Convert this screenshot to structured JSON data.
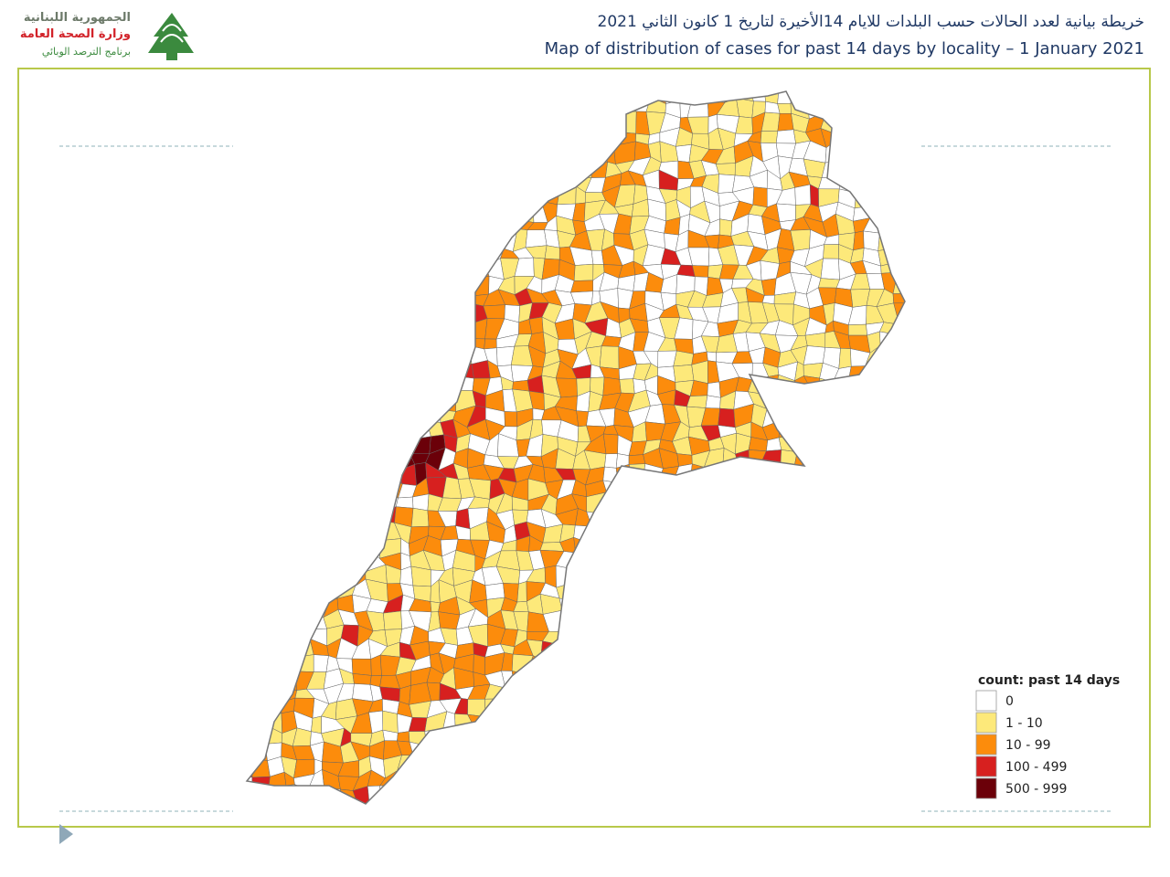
{
  "header": {
    "logo_lines": [
      "الجمهورية اللبنانية",
      "وزارة الصحة العامة",
      "برنامج الترصد الوبائي"
    ],
    "title_ar": "خريطة بيانية لعدد الحالات حسب البلدات للايام 14الأخيرة لتاريخ 1 كانون الثاني 2021",
    "title_en": "Map of distribution of cases for past 14 days by locality – 1 January 2021"
  },
  "legend": {
    "title": "count: past 14 days",
    "items": [
      {
        "label": "0",
        "color": "#ffffff"
      },
      {
        "label": "1 - 10",
        "color": "#fde97a"
      },
      {
        "label": "10 - 99",
        "color": "#fc8c0c"
      },
      {
        "label": "100 - 499",
        "color": "#d7201f"
      },
      {
        "label": "500 - 999",
        "color": "#6b0009"
      }
    ]
  }
}
